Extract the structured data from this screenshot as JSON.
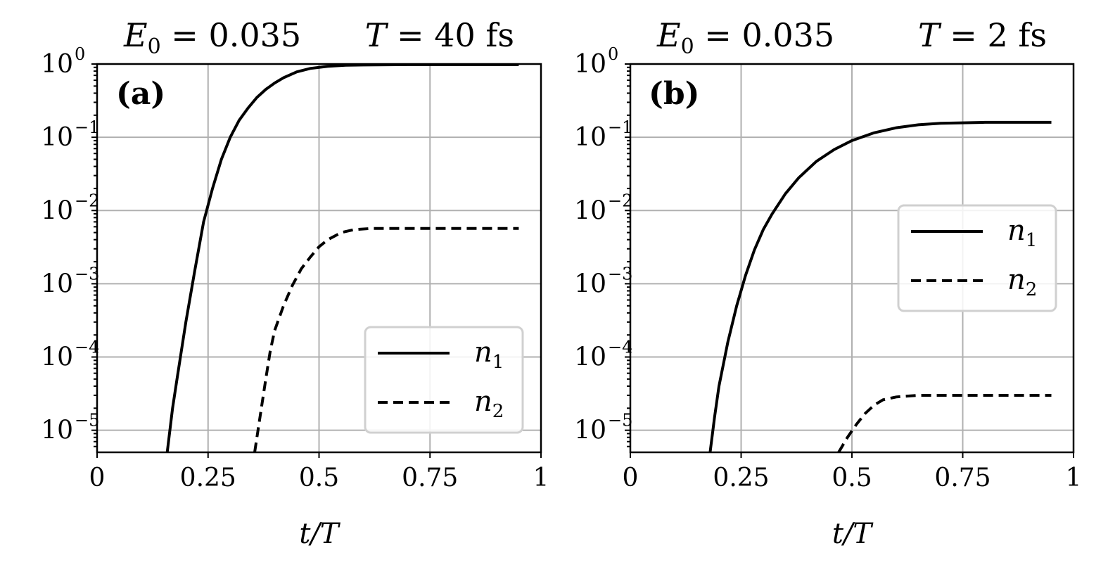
{
  "chart_data": [
    {
      "type": "line",
      "panel_label": "(a)",
      "title_left": "E0 = 0.035",
      "title_left_parts": {
        "symbol": "E",
        "subscript": "0",
        "rest": " = 0.035"
      },
      "title_right": "T = 40 fs",
      "title_right_parts": {
        "symbol": "T",
        "rest": " = 40 fs"
      },
      "xlabel": "t/T",
      "ylabel": "",
      "xlim": [
        0,
        1
      ],
      "ylim": [
        5e-06,
        1
      ],
      "yscale": "log",
      "grid": true,
      "x_ticks": [
        "0",
        "0.25",
        "0.5",
        "0.75",
        "1"
      ],
      "y_ticks": [
        {
          "base": "10",
          "exp": "0"
        },
        {
          "base": "10",
          "exp": "−1"
        },
        {
          "base": "10",
          "exp": "−2"
        },
        {
          "base": "10",
          "exp": "−3"
        },
        {
          "base": "10",
          "exp": "−4"
        },
        {
          "base": "10",
          "exp": "−5"
        }
      ],
      "legend_position": "lower-right",
      "series": [
        {
          "name": "n1",
          "name_parts": {
            "symbol": "n",
            "subscript": "1"
          },
          "style": "solid",
          "x": [
            0.158,
            0.17,
            0.18,
            0.2,
            0.22,
            0.24,
            0.26,
            0.28,
            0.3,
            0.32,
            0.34,
            0.36,
            0.38,
            0.4,
            0.42,
            0.45,
            0.48,
            0.52,
            0.56,
            0.6,
            0.7,
            0.8,
            0.95
          ],
          "y": [
            5e-06,
            2e-05,
            5e-05,
            0.0003,
            0.0015,
            0.007,
            0.02,
            0.05,
            0.1,
            0.17,
            0.25,
            0.35,
            0.45,
            0.55,
            0.65,
            0.78,
            0.87,
            0.93,
            0.96,
            0.97,
            0.98,
            0.98,
            0.98
          ]
        },
        {
          "name": "n2",
          "name_parts": {
            "symbol": "n",
            "subscript": "2"
          },
          "style": "dashed",
          "x": [
            0.355,
            0.37,
            0.38,
            0.39,
            0.4,
            0.42,
            0.44,
            0.46,
            0.48,
            0.5,
            0.52,
            0.55,
            0.58,
            0.62,
            0.7,
            0.8,
            0.95
          ],
          "y": [
            5e-06,
            2e-05,
            5e-05,
            0.00012,
            0.00023,
            0.0005,
            0.00095,
            0.0016,
            0.0023,
            0.0032,
            0.004,
            0.005,
            0.0055,
            0.0057,
            0.0057,
            0.0057,
            0.0057
          ]
        }
      ]
    },
    {
      "type": "line",
      "panel_label": "(b)",
      "title_left": "E0 = 0.035",
      "title_left_parts": {
        "symbol": "E",
        "subscript": "0",
        "rest": " = 0.035"
      },
      "title_right": "T = 2 fs",
      "title_right_parts": {
        "symbol": "T",
        "rest": " = 2 fs"
      },
      "xlabel": "t/T",
      "ylabel": "",
      "xlim": [
        0,
        1
      ],
      "ylim": [
        5e-06,
        1
      ],
      "yscale": "log",
      "grid": true,
      "x_ticks": [
        "0",
        "0.25",
        "0.5",
        "0.75",
        "1"
      ],
      "y_ticks": [
        {
          "base": "10",
          "exp": "0"
        },
        {
          "base": "10",
          "exp": "−1"
        },
        {
          "base": "10",
          "exp": "−2"
        },
        {
          "base": "10",
          "exp": "−3"
        },
        {
          "base": "10",
          "exp": "−4"
        },
        {
          "base": "10",
          "exp": "−5"
        }
      ],
      "legend_position": "center-right",
      "series": [
        {
          "name": "n1",
          "name_parts": {
            "symbol": "n",
            "subscript": "1"
          },
          "style": "solid",
          "x": [
            0.18,
            0.19,
            0.2,
            0.22,
            0.24,
            0.26,
            0.28,
            0.3,
            0.32,
            0.35,
            0.38,
            0.42,
            0.46,
            0.5,
            0.55,
            0.6,
            0.65,
            0.7,
            0.8,
            0.95
          ],
          "y": [
            5e-06,
            1.5e-05,
            4e-05,
            0.00016,
            0.0005,
            0.0013,
            0.0029,
            0.0055,
            0.009,
            0.017,
            0.028,
            0.047,
            0.068,
            0.09,
            0.115,
            0.135,
            0.148,
            0.155,
            0.16,
            0.16
          ]
        },
        {
          "name": "n2",
          "name_parts": {
            "symbol": "n",
            "subscript": "2"
          },
          "style": "dashed",
          "x": [
            0.47,
            0.49,
            0.51,
            0.53,
            0.55,
            0.57,
            0.6,
            0.65,
            0.7,
            0.8,
            0.95
          ],
          "y": [
            5e-06,
            8e-06,
            1.2e-05,
            1.7e-05,
            2.2e-05,
            2.6e-05,
            2.85e-05,
            3e-05,
            3e-05,
            3e-05,
            3e-05
          ]
        }
      ]
    }
  ]
}
